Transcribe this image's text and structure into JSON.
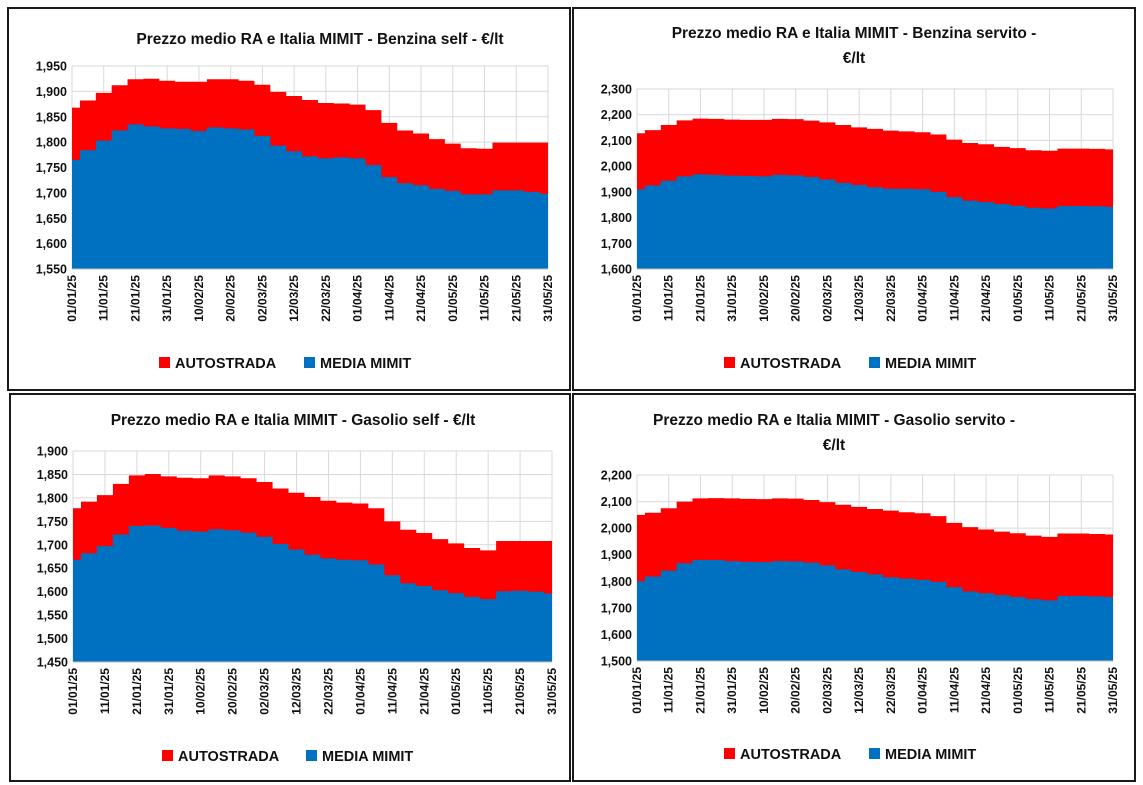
{
  "chart_data": [
    {
      "type": "area",
      "title": "Prezzo medio RA e Italia MIMIT - Benzina self - €/lt",
      "x": [
        "01/01/25",
        "06/01/25",
        "11/01/25",
        "16/01/25",
        "21/01/25",
        "26/01/25",
        "31/01/25",
        "05/02/25",
        "10/02/25",
        "15/02/25",
        "20/02/25",
        "25/02/25",
        "02/03/25",
        "07/03/25",
        "12/03/25",
        "17/03/25",
        "22/03/25",
        "27/03/25",
        "01/04/25",
        "06/04/25",
        "11/04/25",
        "16/04/25",
        "21/04/25",
        "26/04/25",
        "01/05/25",
        "06/05/25",
        "11/05/25",
        "16/05/25",
        "21/05/25",
        "26/05/25",
        "31/05/25"
      ],
      "xtick_labels": [
        "01/01/25",
        "11/01/25",
        "21/01/25",
        "31/01/25",
        "10/02/25",
        "20/02/25",
        "02/03/25",
        "12/03/25",
        "22/03/25",
        "01/04/25",
        "11/04/25",
        "21/04/25",
        "01/05/25",
        "11/05/25",
        "21/05/25",
        "31/05/25"
      ],
      "yticks": [
        "1,550",
        "1,600",
        "1,650",
        "1,700",
        "1,750",
        "1,800",
        "1,850",
        "1,900",
        "1,950"
      ],
      "ylim": [
        1.55,
        1.95
      ],
      "series": [
        {
          "name": "AUTOSTRADA",
          "color": "#ff0000",
          "values": [
            1.868,
            1.882,
            1.897,
            1.912,
            1.924,
            1.925,
            1.921,
            1.919,
            1.919,
            1.924,
            1.924,
            1.921,
            1.913,
            1.899,
            1.891,
            1.883,
            1.877,
            1.876,
            1.874,
            1.863,
            1.838,
            1.823,
            1.817,
            1.806,
            1.797,
            1.788,
            1.787,
            1.799,
            1.799,
            1.799,
            1.799
          ]
        },
        {
          "name": "MEDIA MIMIT",
          "color": "#0070c0",
          "values": [
            1.765,
            1.784,
            1.803,
            1.823,
            1.835,
            1.831,
            1.827,
            1.826,
            1.822,
            1.829,
            1.827,
            1.825,
            1.812,
            1.793,
            1.782,
            1.772,
            1.768,
            1.77,
            1.768,
            1.755,
            1.731,
            1.719,
            1.715,
            1.708,
            1.704,
            1.697,
            1.697,
            1.705,
            1.705,
            1.702,
            1.698
          ]
        }
      ],
      "legend": "bottom"
    },
    {
      "type": "area",
      "title": "Prezzo medio RA e Italia MIMIT - Benzina servito - €/lt",
      "x": [
        "01/01/25",
        "06/01/25",
        "11/01/25",
        "16/01/25",
        "21/01/25",
        "26/01/25",
        "31/01/25",
        "05/02/25",
        "10/02/25",
        "15/02/25",
        "20/02/25",
        "25/02/25",
        "02/03/25",
        "07/03/25",
        "12/03/25",
        "17/03/25",
        "22/03/25",
        "27/03/25",
        "01/04/25",
        "06/04/25",
        "11/04/25",
        "16/04/25",
        "21/04/25",
        "26/04/25",
        "01/05/25",
        "06/05/25",
        "11/05/25",
        "16/05/25",
        "21/05/25",
        "26/05/25",
        "31/05/25"
      ],
      "xtick_labels": [
        "01/01/25",
        "11/01/25",
        "21/01/25",
        "31/01/25",
        "10/02/25",
        "20/02/25",
        "02/03/25",
        "12/03/25",
        "22/03/25",
        "01/04/25",
        "11/04/25",
        "21/04/25",
        "01/05/25",
        "11/05/25",
        "21/05/25",
        "31/05/25"
      ],
      "yticks": [
        "1,600",
        "1,700",
        "1,800",
        "1,900",
        "2,000",
        "2,100",
        "2,200",
        "2,300"
      ],
      "ylim": [
        1.6,
        2.3
      ],
      "series": [
        {
          "name": "AUTOSTRADA",
          "color": "#ff0000",
          "values": [
            2.128,
            2.14,
            2.16,
            2.178,
            2.185,
            2.184,
            2.181,
            2.18,
            2.18,
            2.184,
            2.183,
            2.177,
            2.17,
            2.16,
            2.151,
            2.145,
            2.138,
            2.135,
            2.132,
            2.123,
            2.103,
            2.09,
            2.085,
            2.075,
            2.07,
            2.062,
            2.06,
            2.068,
            2.068,
            2.067,
            2.065
          ]
        },
        {
          "name": "MEDIA MIMIT",
          "color": "#0070c0",
          "values": [
            1.91,
            1.925,
            1.943,
            1.96,
            1.968,
            1.966,
            1.963,
            1.962,
            1.96,
            1.966,
            1.964,
            1.958,
            1.948,
            1.935,
            1.927,
            1.918,
            1.912,
            1.912,
            1.91,
            1.9,
            1.88,
            1.866,
            1.86,
            1.853,
            1.846,
            1.838,
            1.836,
            1.845,
            1.845,
            1.844,
            1.842
          ]
        }
      ],
      "legend": "bottom"
    },
    {
      "type": "area",
      "title": "Prezzo medio RA e Italia MIMIT - Gasolio self - €/lt",
      "x": [
        "01/01/25",
        "06/01/25",
        "11/01/25",
        "16/01/25",
        "21/01/25",
        "26/01/25",
        "31/01/25",
        "05/02/25",
        "10/02/25",
        "15/02/25",
        "20/02/25",
        "25/02/25",
        "02/03/25",
        "07/03/25",
        "12/03/25",
        "17/03/25",
        "22/03/25",
        "27/03/25",
        "01/04/25",
        "06/04/25",
        "11/04/25",
        "16/04/25",
        "21/04/25",
        "26/04/25",
        "01/05/25",
        "06/05/25",
        "11/05/25",
        "16/05/25",
        "21/05/25",
        "26/05/25",
        "31/05/25"
      ],
      "xtick_labels": [
        "01/01/25",
        "11/01/25",
        "21/01/25",
        "31/01/25",
        "10/02/25",
        "20/02/25",
        "02/03/25",
        "12/03/25",
        "22/03/25",
        "01/04/25",
        "11/04/25",
        "21/04/25",
        "01/05/25",
        "11/05/25",
        "21/05/25",
        "31/05/25"
      ],
      "yticks": [
        "1,450",
        "1,500",
        "1,550",
        "1,600",
        "1,650",
        "1,700",
        "1,750",
        "1,800",
        "1,850",
        "1,900"
      ],
      "ylim": [
        1.45,
        1.9
      ],
      "series": [
        {
          "name": "AUTOSTRADA",
          "color": "#ff0000",
          "values": [
            1.778,
            1.792,
            1.806,
            1.83,
            1.848,
            1.851,
            1.846,
            1.843,
            1.842,
            1.848,
            1.846,
            1.842,
            1.834,
            1.82,
            1.811,
            1.802,
            1.794,
            1.79,
            1.788,
            1.778,
            1.75,
            1.732,
            1.725,
            1.712,
            1.703,
            1.693,
            1.688,
            1.708,
            1.708,
            1.708,
            1.708
          ]
        },
        {
          "name": "MEDIA MIMIT",
          "color": "#0070c0",
          "values": [
            1.668,
            1.682,
            1.697,
            1.722,
            1.74,
            1.741,
            1.736,
            1.73,
            1.728,
            1.733,
            1.731,
            1.726,
            1.717,
            1.702,
            1.69,
            1.679,
            1.671,
            1.668,
            1.667,
            1.658,
            1.635,
            1.618,
            1.612,
            1.603,
            1.597,
            1.589,
            1.584,
            1.601,
            1.602,
            1.6,
            1.596
          ]
        }
      ],
      "legend": "bottom"
    },
    {
      "type": "area",
      "title": "Prezzo medio RA e Italia MIMIT - Gasolio servito - €/lt",
      "x": [
        "01/01/25",
        "06/01/25",
        "11/01/25",
        "16/01/25",
        "21/01/25",
        "26/01/25",
        "31/01/25",
        "05/02/25",
        "10/02/25",
        "15/02/25",
        "20/02/25",
        "25/02/25",
        "02/03/25",
        "07/03/25",
        "12/03/25",
        "17/03/25",
        "22/03/25",
        "27/03/25",
        "01/04/25",
        "06/04/25",
        "11/04/25",
        "16/04/25",
        "21/04/25",
        "26/04/25",
        "01/05/25",
        "06/05/25",
        "11/05/25",
        "16/05/25",
        "21/05/25",
        "26/05/25",
        "31/05/25"
      ],
      "xtick_labels": [
        "01/01/25",
        "11/01/25",
        "21/01/25",
        "31/01/25",
        "10/02/25",
        "20/02/25",
        "02/03/25",
        "12/03/25",
        "22/03/25",
        "01/04/25",
        "11/04/25",
        "21/04/25",
        "01/05/25",
        "11/05/25",
        "21/05/25",
        "31/05/25"
      ],
      "yticks": [
        "1,500",
        "1,600",
        "1,700",
        "1,800",
        "1,900",
        "2,000",
        "2,100",
        "2,200"
      ],
      "ylim": [
        1.5,
        2.2
      ],
      "series": [
        {
          "name": "AUTOSTRADA",
          "color": "#ff0000",
          "values": [
            2.05,
            2.058,
            2.075,
            2.1,
            2.112,
            2.113,
            2.112,
            2.11,
            2.109,
            2.112,
            2.111,
            2.106,
            2.098,
            2.088,
            2.08,
            2.072,
            2.066,
            2.06,
            2.056,
            2.045,
            2.02,
            2.004,
            1.995,
            1.987,
            1.981,
            1.972,
            1.967,
            1.98,
            1.98,
            1.978,
            1.976
          ]
        },
        {
          "name": "MEDIA MIMIT",
          "color": "#0070c0",
          "values": [
            1.8,
            1.818,
            1.84,
            1.868,
            1.88,
            1.88,
            1.876,
            1.873,
            1.872,
            1.876,
            1.875,
            1.87,
            1.86,
            1.845,
            1.835,
            1.826,
            1.815,
            1.81,
            1.806,
            1.798,
            1.778,
            1.762,
            1.755,
            1.748,
            1.741,
            1.733,
            1.728,
            1.745,
            1.745,
            1.743,
            1.741
          ]
        }
      ],
      "legend": "bottom"
    }
  ]
}
